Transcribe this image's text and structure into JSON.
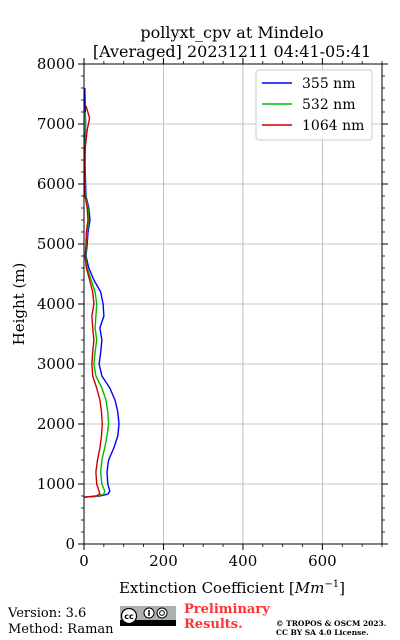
{
  "chart_data": {
    "type": "line",
    "title": "pollyxt_cpv at Mindelo",
    "subtitle": "[Averaged] 20231211 04:41-05:41",
    "xlabel": "Extinction Coefficient [Mm⁻¹]",
    "ylabel": "Height (m)",
    "xlim": [
      0,
      750
    ],
    "ylim": [
      0,
      8000
    ],
    "xticks": [
      "0",
      "200",
      "400",
      "600"
    ],
    "yticks": [
      "0",
      "1000",
      "2000",
      "3000",
      "4000",
      "5000",
      "6000",
      "7000",
      "8000"
    ],
    "grid": true,
    "legend_position": "top-right",
    "series": [
      {
        "name": "355 nm",
        "color": "#0000ff",
        "points": [
          [
            0,
            780
          ],
          [
            40,
            800
          ],
          [
            60,
            830
          ],
          [
            65,
            880
          ],
          [
            60,
            1000
          ],
          [
            58,
            1200
          ],
          [
            62,
            1400
          ],
          [
            75,
            1600
          ],
          [
            85,
            1800
          ],
          [
            88,
            2000
          ],
          [
            85,
            2200
          ],
          [
            78,
            2400
          ],
          [
            65,
            2600
          ],
          [
            45,
            2800
          ],
          [
            38,
            3000
          ],
          [
            42,
            3200
          ],
          [
            45,
            3400
          ],
          [
            40,
            3600
          ],
          [
            50,
            3800
          ],
          [
            48,
            4000
          ],
          [
            42,
            4200
          ],
          [
            25,
            4400
          ],
          [
            12,
            4600
          ],
          [
            5,
            4800
          ],
          [
            8,
            5000
          ],
          [
            10,
            5200
          ],
          [
            15,
            5400
          ],
          [
            12,
            5600
          ],
          [
            5,
            5800
          ],
          [
            4,
            6000
          ],
          [
            3,
            6200
          ],
          [
            2,
            6500
          ],
          [
            3,
            6800
          ],
          [
            4,
            7000
          ],
          [
            3,
            7300
          ],
          [
            2,
            7600
          ]
        ]
      },
      {
        "name": "532 nm",
        "color": "#00bb00",
        "points": [
          [
            0,
            780
          ],
          [
            35,
            800
          ],
          [
            50,
            830
          ],
          [
            52,
            880
          ],
          [
            45,
            1000
          ],
          [
            42,
            1200
          ],
          [
            45,
            1400
          ],
          [
            52,
            1600
          ],
          [
            58,
            1800
          ],
          [
            62,
            2000
          ],
          [
            60,
            2200
          ],
          [
            55,
            2400
          ],
          [
            45,
            2600
          ],
          [
            30,
            2800
          ],
          [
            25,
            3000
          ],
          [
            28,
            3200
          ],
          [
            32,
            3400
          ],
          [
            28,
            3600
          ],
          [
            30,
            3800
          ],
          [
            32,
            4000
          ],
          [
            28,
            4200
          ],
          [
            18,
            4400
          ],
          [
            8,
            4600
          ],
          [
            4,
            4800
          ],
          [
            6,
            5000
          ],
          [
            8,
            5200
          ],
          [
            12,
            5400
          ],
          [
            10,
            5600
          ],
          [
            4,
            5800
          ],
          [
            3,
            6000
          ],
          [
            2,
            6300
          ],
          [
            3,
            6600
          ],
          [
            4,
            6900
          ],
          [
            3,
            7200
          ]
        ]
      },
      {
        "name": "1064 nm",
        "color": "#cc0000",
        "points": [
          [
            0,
            780
          ],
          [
            30,
            800
          ],
          [
            40,
            830
          ],
          [
            38,
            880
          ],
          [
            32,
            1000
          ],
          [
            30,
            1200
          ],
          [
            34,
            1400
          ],
          [
            40,
            1600
          ],
          [
            44,
            1800
          ],
          [
            46,
            2000
          ],
          [
            44,
            2200
          ],
          [
            40,
            2400
          ],
          [
            32,
            2600
          ],
          [
            22,
            2800
          ],
          [
            20,
            3000
          ],
          [
            22,
            3200
          ],
          [
            25,
            3400
          ],
          [
            22,
            3600
          ],
          [
            20,
            3800
          ],
          [
            25,
            4000
          ],
          [
            22,
            4200
          ],
          [
            14,
            4400
          ],
          [
            6,
            4600
          ],
          [
            3,
            4800
          ],
          [
            5,
            5000
          ],
          [
            6,
            5200
          ],
          [
            10,
            5400
          ],
          [
            8,
            5600
          ],
          [
            3,
            5800
          ],
          [
            2,
            6000
          ],
          [
            2,
            6300
          ],
          [
            3,
            6600
          ],
          [
            8,
            6900
          ],
          [
            14,
            7100
          ],
          [
            5,
            7300
          ]
        ]
      }
    ]
  },
  "footer": {
    "version": "Version: 3.6",
    "method": "Method: Raman",
    "preliminary": "Preliminary",
    "results": "Results.",
    "copyright": "© TROPOS & OSCM 2023.",
    "license": "CC BY SA 4.0 License."
  },
  "icons": {
    "license_logo": "cc-by-sa-icon"
  }
}
